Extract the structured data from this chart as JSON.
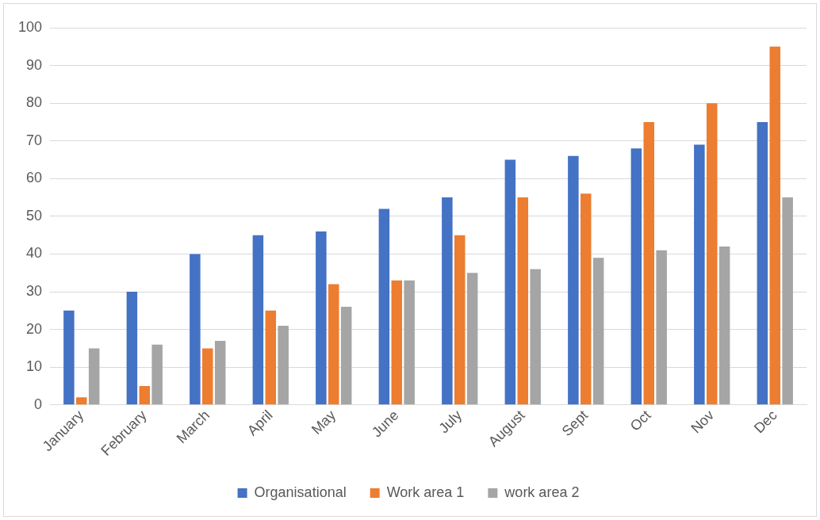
{
  "chart_data": {
    "type": "bar",
    "categories": [
      "January",
      "February",
      "March",
      "April",
      "May",
      "June",
      "July",
      "August",
      "Sept",
      "Oct",
      "Nov",
      "Dec"
    ],
    "series": [
      {
        "name": "Organisational",
        "color": "#4472c4",
        "values": [
          25,
          30,
          40,
          45,
          46,
          52,
          55,
          65,
          66,
          68,
          69,
          75
        ]
      },
      {
        "name": "Work area 1",
        "color": "#ed7d31",
        "values": [
          2,
          5,
          15,
          25,
          32,
          33,
          45,
          55,
          56,
          75,
          80,
          95
        ]
      },
      {
        "name": "work area 2",
        "color": "#a5a5a5",
        "values": [
          15,
          16,
          17,
          21,
          26,
          33,
          35,
          36,
          39,
          41,
          42,
          55
        ]
      }
    ],
    "ylim": [
      0,
      100
    ],
    "yticks": [
      0,
      10,
      20,
      30,
      40,
      50,
      60,
      70,
      80,
      90,
      100
    ],
    "grid": "y",
    "legend": "bottom"
  }
}
